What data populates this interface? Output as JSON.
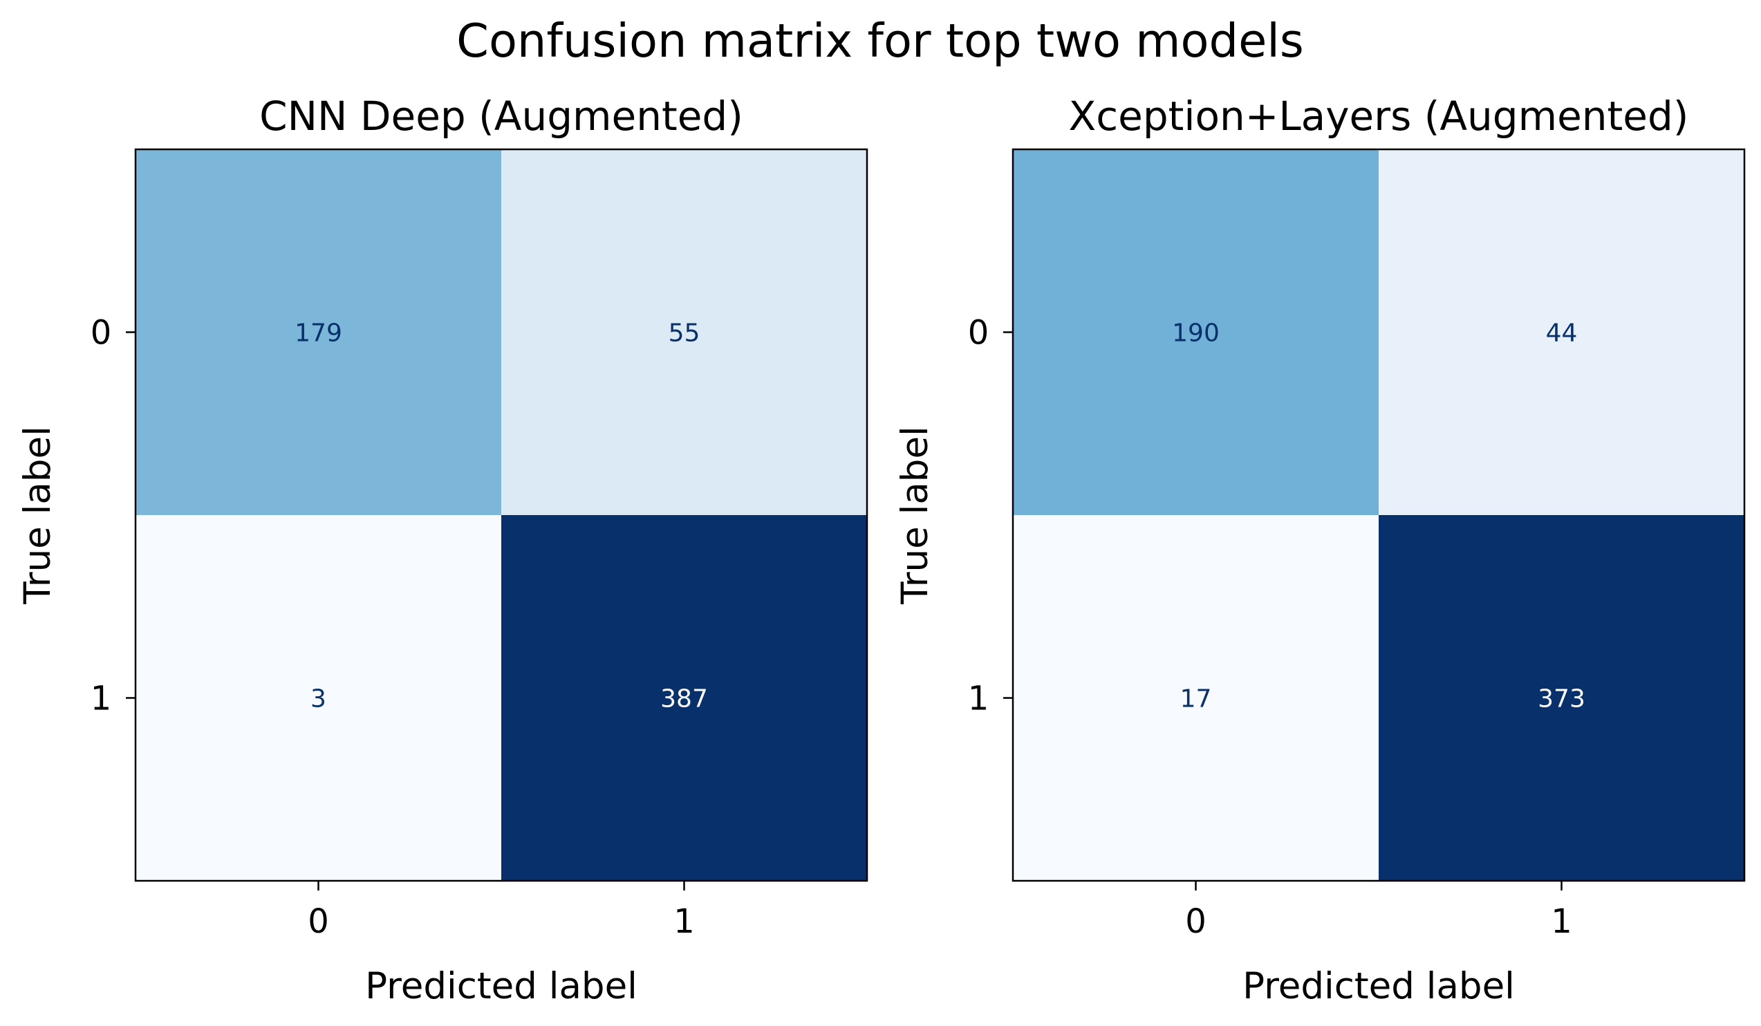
{
  "figure": {
    "suptitle": "Confusion matrix for top two models",
    "colormap": "Blues",
    "low_color": "#f7fbff",
    "high_color": "#08306b"
  },
  "chart_data": [
    {
      "type": "heatmap",
      "title": "CNN Deep (Augmented)",
      "xlabel": "Predicted label",
      "ylabel": "True label",
      "x_categories": [
        "0",
        "1"
      ],
      "y_categories": [
        "0",
        "1"
      ],
      "values": [
        [
          179,
          55
        ],
        [
          3,
          387
        ]
      ],
      "vmin": 3,
      "vmax": 387,
      "grid": false,
      "colorbar": false
    },
    {
      "type": "heatmap",
      "title": "Xception+Layers (Augmented)",
      "xlabel": "Predicted label",
      "ylabel": "True label",
      "x_categories": [
        "0",
        "1"
      ],
      "y_categories": [
        "0",
        "1"
      ],
      "values": [
        [
          190,
          44
        ],
        [
          17,
          373
        ]
      ],
      "vmin": 17,
      "vmax": 373,
      "grid": false,
      "colorbar": false
    }
  ]
}
